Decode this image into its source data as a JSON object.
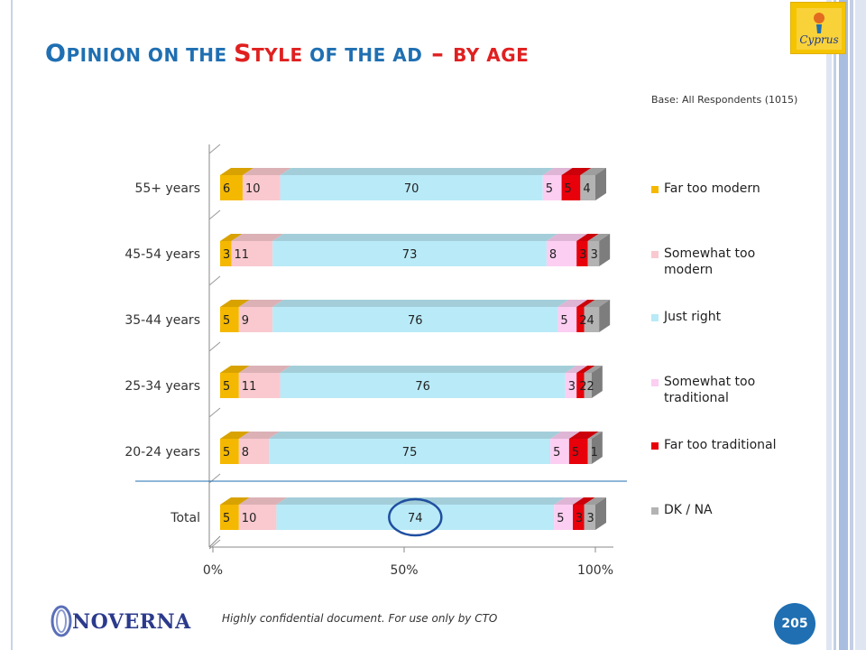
{
  "slide": {
    "title_parts": [
      {
        "text": "O",
        "style": "big"
      },
      {
        "text": "PINION ON THE ",
        "style": "small"
      },
      {
        "text": "S",
        "style": "big-red"
      },
      {
        "text": "TYLE",
        "style": "small-red"
      },
      {
        "text": " OF THE AD",
        "style": "small"
      },
      {
        "text": " – ",
        "style": "big-red"
      },
      {
        "text": "BY AGE",
        "style": "small-red"
      }
    ],
    "base_note": "Base: All Respondents (1015)",
    "footer_note": "Highly confidential document. For use only by CTO",
    "page_number": "205",
    "logos": {
      "left": "NOVERNA",
      "right": "Cyprus in your heart"
    }
  },
  "chart_data": {
    "type": "bar",
    "orientation": "horizontal",
    "stacked": "percent",
    "categories": [
      "55+ years",
      "45-54 years",
      "35-44 years",
      "25-34 years",
      "20-24 years",
      "Total"
    ],
    "series": [
      {
        "name": "Far too modern",
        "color": "#f5b800",
        "values": [
          6,
          3,
          5,
          5,
          5,
          5
        ],
        "labels": [
          "6",
          "3",
          "5",
          "5",
          "5",
          "5"
        ]
      },
      {
        "name": "Somewhat too modern",
        "color": "#f9c9cf",
        "values": [
          10,
          11,
          9,
          11,
          8,
          10
        ],
        "labels": [
          "10",
          "11",
          "9",
          "11",
          "8",
          "10"
        ]
      },
      {
        "name": "Just right",
        "color": "#b9eaf7",
        "values": [
          70,
          73,
          76,
          76,
          75,
          74
        ],
        "labels": [
          "70",
          "73",
          "76",
          "76",
          "75",
          "74"
        ]
      },
      {
        "name": "Somewhat too traditional",
        "color": "#fccef2",
        "values": [
          5,
          8,
          5,
          3,
          5,
          5
        ],
        "labels": [
          "5",
          "8",
          "5",
          "3",
          "5",
          "5"
        ]
      },
      {
        "name": "Far too traditional",
        "color": "#e8000b",
        "values": [
          5,
          3,
          2,
          2,
          5,
          3
        ],
        "labels": [
          "5",
          "3",
          "2",
          "2",
          "5",
          "3"
        ]
      },
      {
        "name": "DK / NA",
        "color": "#b3b3b3",
        "values": [
          4,
          3,
          4,
          2,
          1,
          3
        ],
        "labels": [
          "4",
          "3",
          "4",
          "2",
          "1",
          "3"
        ]
      }
    ],
    "legend_labels": [
      [
        "Far too modern"
      ],
      [
        "Somewhat too",
        "modern"
      ],
      [
        "Just right"
      ],
      [
        "Somewhat too",
        "traditional"
      ],
      [
        "Far too traditional"
      ],
      [
        "DK / NA"
      ]
    ],
    "x_ticks": [
      "0%",
      "50%",
      "100%"
    ],
    "x_range": [
      0,
      100
    ],
    "legend_position": "right",
    "highlight": {
      "category": "Total",
      "series": "Just right"
    }
  }
}
